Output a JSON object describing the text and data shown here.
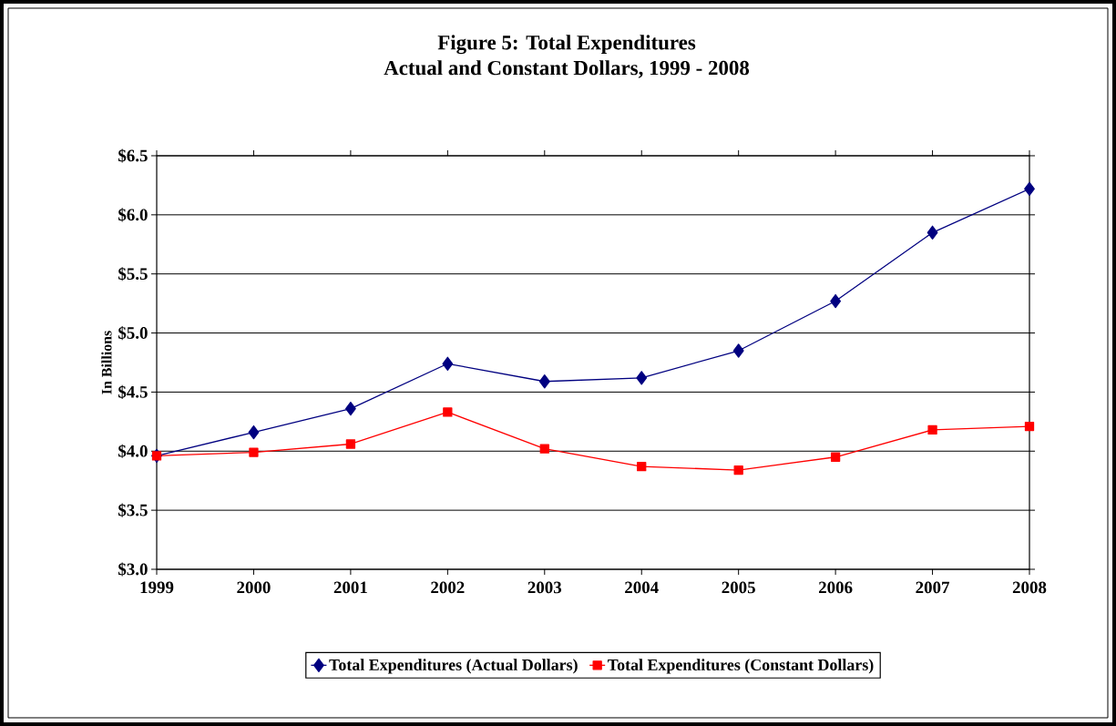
{
  "chart_data": {
    "type": "line",
    "title": "Figure 5: Total Expenditures",
    "subtitle": "Actual and Constant Dollars, 1999 - 2008",
    "ylabel": "In Billions",
    "categories": [
      "1999",
      "2000",
      "2001",
      "2002",
      "2003",
      "2004",
      "2005",
      "2006",
      "2007",
      "2008"
    ],
    "series": [
      {
        "name": "Total Expenditures (Actual Dollars)",
        "color": "#000080",
        "marker": "diamond",
        "values": [
          3.96,
          4.16,
          4.36,
          4.74,
          4.59,
          4.62,
          4.85,
          5.27,
          5.85,
          6.22
        ]
      },
      {
        "name": "Total Expenditures (Constant Dollars)",
        "color": "#ff0000",
        "marker": "square",
        "values": [
          3.96,
          3.99,
          4.06,
          4.33,
          4.02,
          3.87,
          3.84,
          3.95,
          4.18,
          4.21
        ]
      }
    ],
    "ylim": [
      3.0,
      6.5
    ],
    "yticks": [
      {
        "value": 3.0,
        "label": "$3.0"
      },
      {
        "value": 3.5,
        "label": "$3.5"
      },
      {
        "value": 4.0,
        "label": "$4.0"
      },
      {
        "value": 4.5,
        "label": "$4.5"
      },
      {
        "value": 5.0,
        "label": "$5.0"
      },
      {
        "value": 5.5,
        "label": "$5.5"
      },
      {
        "value": 6.0,
        "label": "$6.0"
      },
      {
        "value": 6.5,
        "label": "$6.5"
      }
    ],
    "grid": "y",
    "legend": "bottom",
    "line_style": "solid"
  }
}
